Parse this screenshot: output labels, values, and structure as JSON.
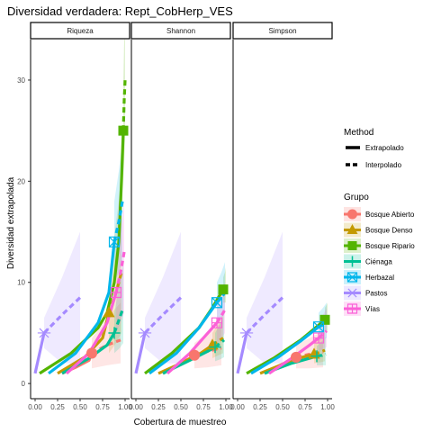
{
  "chart_data": {
    "type": "line",
    "title": "Diversidad verdadera: Rept_CobHerp_VES",
    "xlabel": "Cobertura de muestreo",
    "ylabel": "Diversidad extrapolada",
    "xlim": [
      0,
      1
    ],
    "ylim": [
      -1.5,
      34
    ],
    "x_ticks": [
      "0.00",
      "0.25",
      "0.50",
      "0.75",
      "1.00"
    ],
    "y_ticks": [
      "0",
      "10",
      "20",
      "30"
    ],
    "y_tick_values": [
      0,
      10,
      20,
      30
    ],
    "facets": [
      "Riqueza",
      "Shannon",
      "Simpson"
    ],
    "legend_method": {
      "title": "Method",
      "items": [
        "Extrapolado",
        "Interpolado"
      ]
    },
    "legend_group": {
      "title": "Grupo",
      "items": [
        {
          "name": "Bosque Abierto",
          "color": "#F8766D",
          "shape": "circle"
        },
        {
          "name": "Bosque Denso",
          "color": "#C49A00",
          "shape": "triangle"
        },
        {
          "name": "Bosque Ripario",
          "color": "#53B400",
          "shape": "square"
        },
        {
          "name": "Ciénaga",
          "color": "#00C094",
          "shape": "cross"
        },
        {
          "name": "Herbazal",
          "color": "#00B6EB",
          "shape": "boxcross"
        },
        {
          "name": "Pastos",
          "color": "#A58AFF",
          "shape": "asterisk"
        },
        {
          "name": "Vías",
          "color": "#FB61D7",
          "shape": "squareplus"
        }
      ]
    },
    "series": [
      {
        "panel": "Riqueza",
        "group": "Bosque Abierto",
        "interp": [
          [
            0.3,
            1
          ],
          [
            0.45,
            1.6
          ],
          [
            0.6,
            2.3
          ],
          [
            0.63,
            3
          ]
        ],
        "extrap": [
          [
            0.63,
            3
          ],
          [
            0.8,
            3.8
          ],
          [
            0.95,
            4.3
          ]
        ],
        "ci_extrap": [
          [
            0.63,
            1.5,
            4.5
          ],
          [
            0.8,
            1.8,
            6.5
          ],
          [
            0.95,
            2,
            8
          ]
        ],
        "obs": [
          0.63,
          3
        ]
      },
      {
        "panel": "Riqueza",
        "group": "Bosque Denso",
        "interp": [
          [
            0.25,
            1
          ],
          [
            0.55,
            2.6
          ],
          [
            0.75,
            4.5
          ],
          [
            0.82,
            7
          ]
        ],
        "extrap": [
          [
            0.82,
            7
          ],
          [
            0.9,
            9
          ],
          [
            0.96,
            11
          ]
        ],
        "ci_extrap": [
          [
            0.82,
            3,
            10
          ],
          [
            0.9,
            4,
            16
          ],
          [
            0.96,
            5,
            20
          ]
        ],
        "obs": [
          0.82,
          7
        ]
      },
      {
        "panel": "Riqueza",
        "group": "Bosque Ripario",
        "interp": [
          [
            0.05,
            1
          ],
          [
            0.4,
            3
          ],
          [
            0.7,
            5.5
          ],
          [
            0.8,
            7
          ],
          [
            0.88,
            10
          ],
          [
            0.93,
            14
          ],
          [
            0.96,
            20
          ],
          [
            0.98,
            25
          ]
        ],
        "extrap": [
          [
            0.98,
            25
          ],
          [
            0.99,
            28
          ],
          [
            1.0,
            30
          ]
        ],
        "ci_extrap": [
          [
            0.98,
            20,
            30
          ],
          [
            0.99,
            22,
            34
          ],
          [
            1.0,
            24,
            36
          ]
        ],
        "obs": [
          0.98,
          25
        ]
      },
      {
        "panel": "Riqueza",
        "group": "Ciénaga",
        "interp": [
          [
            0.3,
            1
          ],
          [
            0.6,
            2.5
          ],
          [
            0.8,
            3.8
          ],
          [
            0.88,
            5
          ]
        ],
        "extrap": [
          [
            0.88,
            5
          ],
          [
            0.94,
            6.5
          ],
          [
            0.98,
            7.5
          ]
        ],
        "ci_extrap": [
          [
            0.88,
            3,
            7
          ],
          [
            0.94,
            3.5,
            10
          ],
          [
            0.98,
            4,
            12
          ]
        ],
        "obs": [
          0.88,
          5
        ]
      },
      {
        "panel": "Riqueza",
        "group": "Herbazal",
        "interp": [
          [
            0.15,
            1
          ],
          [
            0.45,
            3
          ],
          [
            0.7,
            6
          ],
          [
            0.82,
            9
          ],
          [
            0.88,
            14
          ]
        ],
        "extrap": [
          [
            0.88,
            14
          ],
          [
            0.93,
            16
          ],
          [
            0.97,
            18
          ]
        ],
        "ci_extrap": [
          [
            0.88,
            10,
            18
          ],
          [
            0.93,
            11,
            21
          ],
          [
            0.97,
            12,
            24
          ]
        ],
        "obs": [
          0.88,
          14
        ]
      },
      {
        "panel": "Riqueza",
        "group": "Pastos",
        "interp": [
          [
            0.0,
            1
          ],
          [
            0.05,
            3
          ],
          [
            0.1,
            5
          ]
        ],
        "extrap": [
          [
            0.1,
            5
          ],
          [
            0.3,
            6.8
          ],
          [
            0.5,
            8.5
          ]
        ],
        "ci_extrap": [
          [
            0.1,
            3.5,
            6.5
          ],
          [
            0.3,
            2,
            10.5
          ],
          [
            0.5,
            2,
            15
          ]
        ],
        "obs": [
          0.1,
          5
        ]
      },
      {
        "panel": "Riqueza",
        "group": "Vías",
        "interp": [
          [
            0.35,
            1
          ],
          [
            0.6,
            3
          ],
          [
            0.8,
            6
          ],
          [
            0.9,
            9
          ]
        ],
        "extrap": [
          [
            0.9,
            9
          ],
          [
            0.95,
            11
          ],
          [
            0.99,
            13
          ]
        ],
        "ci_extrap": [
          [
            0.9,
            5,
            12
          ],
          [
            0.95,
            6,
            15
          ],
          [
            0.99,
            7,
            18
          ]
        ],
        "obs": [
          0.9,
          9
        ]
      },
      {
        "panel": "Shannon",
        "group": "Bosque Abierto",
        "interp": [
          [
            0.3,
            1
          ],
          [
            0.45,
            1.8
          ],
          [
            0.6,
            2.5
          ],
          [
            0.65,
            2.8
          ]
        ],
        "extrap": [
          [
            0.65,
            2.8
          ],
          [
            0.8,
            3.2
          ],
          [
            0.95,
            3.5
          ]
        ],
        "ci_extrap": [
          [
            0.65,
            1.5,
            4
          ],
          [
            0.8,
            1.6,
            5
          ],
          [
            0.95,
            1.8,
            6
          ]
        ],
        "obs": [
          0.65,
          2.8
        ]
      },
      {
        "panel": "Shannon",
        "group": "Bosque Denso",
        "interp": [
          [
            0.25,
            1
          ],
          [
            0.5,
            2
          ],
          [
            0.72,
            3
          ],
          [
            0.85,
            3.8
          ]
        ],
        "extrap": [
          [
            0.85,
            3.8
          ],
          [
            0.92,
            4.2
          ],
          [
            0.97,
            4.5
          ]
        ],
        "ci_extrap": [
          [
            0.85,
            2.5,
            5
          ],
          [
            0.92,
            2.8,
            6
          ],
          [
            0.97,
            3,
            7
          ]
        ],
        "obs": [
          0.85,
          3.8
        ]
      },
      {
        "panel": "Shannon",
        "group": "Bosque Ripario",
        "interp": [
          [
            0.1,
            1
          ],
          [
            0.4,
            3
          ],
          [
            0.7,
            5.5
          ],
          [
            0.85,
            7.5
          ],
          [
            0.97,
            9.3
          ]
        ],
        "extrap": [
          [
            0.97,
            9.3
          ],
          [
            0.99,
            9.5
          ],
          [
            1.0,
            9.6
          ]
        ],
        "ci_extrap": [
          [
            0.97,
            8,
            10.5
          ],
          [
            0.99,
            8,
            11
          ],
          [
            1.0,
            8,
            11.5
          ]
        ],
        "obs": [
          0.97,
          9.3
        ]
      },
      {
        "panel": "Shannon",
        "group": "Ciénaga",
        "interp": [
          [
            0.3,
            1
          ],
          [
            0.6,
            2.3
          ],
          [
            0.8,
            3.2
          ],
          [
            0.88,
            3.6
          ]
        ],
        "extrap": [
          [
            0.88,
            3.6
          ],
          [
            0.94,
            4
          ],
          [
            0.98,
            4.3
          ]
        ],
        "ci_extrap": [
          [
            0.88,
            2.2,
            5
          ],
          [
            0.94,
            2.4,
            6
          ],
          [
            0.98,
            2.6,
            7
          ]
        ],
        "obs": [
          0.88,
          3.6
        ]
      },
      {
        "panel": "Shannon",
        "group": "Herbazal",
        "interp": [
          [
            0.15,
            1
          ],
          [
            0.45,
            3
          ],
          [
            0.7,
            5.5
          ],
          [
            0.9,
            8
          ]
        ],
        "extrap": [
          [
            0.9,
            8
          ],
          [
            0.95,
            8.5
          ],
          [
            0.99,
            9
          ]
        ],
        "ci_extrap": [
          [
            0.9,
            6,
            10
          ],
          [
            0.95,
            6.5,
            11
          ],
          [
            0.99,
            7,
            12
          ]
        ],
        "obs": [
          0.9,
          8
        ]
      },
      {
        "panel": "Shannon",
        "group": "Pastos",
        "interp": [
          [
            0.0,
            1
          ],
          [
            0.05,
            3
          ],
          [
            0.1,
            5
          ]
        ],
        "extrap": [
          [
            0.1,
            5
          ],
          [
            0.3,
            6.8
          ],
          [
            0.5,
            8.5
          ]
        ],
        "ci_extrap": [
          [
            0.1,
            3.5,
            6.5
          ],
          [
            0.3,
            2,
            10.5
          ],
          [
            0.5,
            2,
            15
          ]
        ],
        "obs": [
          0.1,
          5
        ]
      },
      {
        "panel": "Shannon",
        "group": "Vías",
        "interp": [
          [
            0.35,
            1
          ],
          [
            0.6,
            3
          ],
          [
            0.8,
            5
          ],
          [
            0.9,
            6
          ]
        ],
        "extrap": [
          [
            0.9,
            6
          ],
          [
            0.95,
            6.7
          ],
          [
            0.99,
            7.3
          ]
        ],
        "ci_extrap": [
          [
            0.9,
            4,
            8
          ],
          [
            0.95,
            4.5,
            9
          ],
          [
            0.99,
            5,
            10
          ]
        ],
        "obs": [
          0.9,
          6
        ]
      },
      {
        "panel": "Simpson",
        "group": "Bosque Abierto",
        "interp": [
          [
            0.3,
            1
          ],
          [
            0.45,
            1.7
          ],
          [
            0.6,
            2.4
          ],
          [
            0.65,
            2.6
          ]
        ],
        "extrap": [
          [
            0.65,
            2.6
          ],
          [
            0.8,
            2.9
          ],
          [
            0.95,
            3.1
          ]
        ],
        "ci_extrap": [
          [
            0.65,
            1.5,
            3.8
          ],
          [
            0.8,
            1.5,
            4.5
          ],
          [
            0.95,
            1.6,
            5.2
          ]
        ],
        "obs": [
          0.65,
          2.6
        ]
      },
      {
        "panel": "Simpson",
        "group": "Bosque Denso",
        "interp": [
          [
            0.25,
            1
          ],
          [
            0.5,
            1.9
          ],
          [
            0.72,
            2.6
          ],
          [
            0.85,
            2.9
          ]
        ],
        "extrap": [
          [
            0.85,
            2.9
          ],
          [
            0.92,
            3.1
          ],
          [
            0.97,
            3.3
          ]
        ],
        "ci_extrap": [
          [
            0.85,
            2,
            4
          ],
          [
            0.92,
            2.1,
            4.6
          ],
          [
            0.97,
            2.2,
            5.2
          ]
        ],
        "obs": [
          0.85,
          2.9
        ]
      },
      {
        "panel": "Simpson",
        "group": "Bosque Ripario",
        "interp": [
          [
            0.1,
            1
          ],
          [
            0.4,
            2.5
          ],
          [
            0.7,
            4.3
          ],
          [
            0.85,
            5.4
          ],
          [
            0.97,
            6.3
          ]
        ],
        "extrap": [
          [
            0.97,
            6.3
          ],
          [
            0.99,
            6.4
          ],
          [
            1.0,
            6.5
          ]
        ],
        "ci_extrap": [
          [
            0.97,
            5.2,
            7.5
          ],
          [
            0.99,
            5.2,
            7.8
          ],
          [
            1.0,
            5.2,
            8
          ]
        ],
        "obs": [
          0.97,
          6.3
        ]
      },
      {
        "panel": "Simpson",
        "group": "Ciénaga",
        "interp": [
          [
            0.3,
            1
          ],
          [
            0.6,
            2
          ],
          [
            0.8,
            2.5
          ],
          [
            0.88,
            2.7
          ]
        ],
        "extrap": [
          [
            0.88,
            2.7
          ],
          [
            0.94,
            2.8
          ],
          [
            0.98,
            2.9
          ]
        ],
        "ci_extrap": [
          [
            0.88,
            1.8,
            3.7
          ],
          [
            0.94,
            1.8,
            4.2
          ],
          [
            0.98,
            1.8,
            4.6
          ]
        ],
        "obs": [
          0.88,
          2.7
        ]
      },
      {
        "panel": "Simpson",
        "group": "Herbazal",
        "interp": [
          [
            0.15,
            1
          ],
          [
            0.45,
            2.6
          ],
          [
            0.7,
            4.2
          ],
          [
            0.9,
            5.6
          ]
        ],
        "extrap": [
          [
            0.9,
            5.6
          ],
          [
            0.95,
            5.8
          ],
          [
            0.99,
            6
          ]
        ],
        "ci_extrap": [
          [
            0.9,
            4.3,
            7
          ],
          [
            0.95,
            4.4,
            7.5
          ],
          [
            0.99,
            4.5,
            8
          ]
        ],
        "obs": [
          0.9,
          5.6
        ]
      },
      {
        "panel": "Simpson",
        "group": "Pastos",
        "interp": [
          [
            0.0,
            1
          ],
          [
            0.05,
            3
          ],
          [
            0.1,
            5
          ]
        ],
        "extrap": [
          [
            0.1,
            5
          ],
          [
            0.3,
            6.8
          ],
          [
            0.5,
            8.5
          ]
        ],
        "ci_extrap": [
          [
            0.1,
            3.5,
            6.5
          ],
          [
            0.3,
            2,
            10.5
          ],
          [
            0.5,
            2,
            15
          ]
        ],
        "obs": [
          0.1,
          5
        ]
      },
      {
        "panel": "Simpson",
        "group": "Vías",
        "interp": [
          [
            0.35,
            1
          ],
          [
            0.6,
            2.5
          ],
          [
            0.8,
            3.8
          ],
          [
            0.9,
            4.5
          ]
        ],
        "extrap": [
          [
            0.9,
            4.5
          ],
          [
            0.95,
            4.9
          ],
          [
            0.99,
            5.2
          ]
        ],
        "ci_extrap": [
          [
            0.9,
            3.2,
            6
          ],
          [
            0.95,
            3.4,
            6.8
          ],
          [
            0.99,
            3.6,
            7.5
          ]
        ],
        "obs": [
          0.9,
          4.5
        ]
      }
    ]
  }
}
